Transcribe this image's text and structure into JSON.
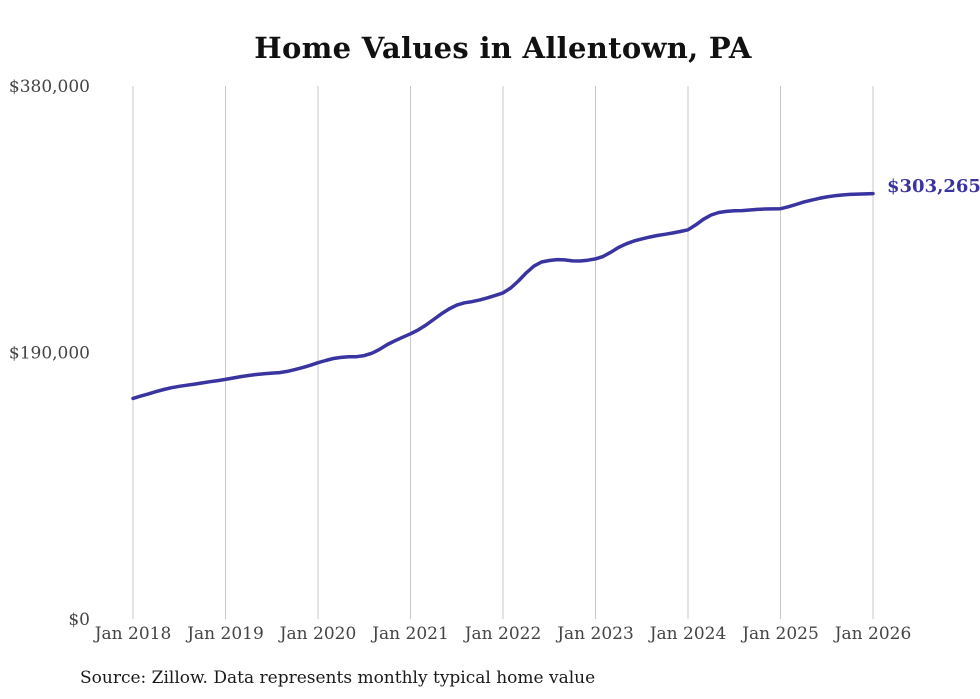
{
  "chart_data": {
    "type": "line",
    "title": "Home Values in Allentown, PA",
    "source_note": "Source: Zillow. Data represents monthly typical home value",
    "end_label": "$303,265",
    "end_value": 303265,
    "x_start": "Jan 2018",
    "x_end": "Jan 2026",
    "x_interval": "monthly",
    "x_tick_labels": [
      "Jan 2018",
      "Jan 2019",
      "Jan 2020",
      "Jan 2021",
      "Jan 2022",
      "Jan 2023",
      "Jan 2024",
      "Jan 2025",
      "Jan 2026"
    ],
    "y_ticks": [
      {
        "label": "$0",
        "value": 0
      },
      {
        "label": "$190,000",
        "value": 190000
      },
      {
        "label": "$380,000",
        "value": 380000
      }
    ],
    "ylim": [
      0,
      380000
    ],
    "grid": "vertical-only",
    "legend": "none",
    "colors": {
      "line": "#3a34a0",
      "gridline": "#c9c9c9",
      "tick_label": "#444444",
      "title": "#111111",
      "source": "#1a1a1a",
      "background": "#ffffff"
    },
    "series": [
      {
        "name": "Monthly typical home value",
        "values": [
          157300,
          158900,
          160500,
          162100,
          163600,
          164900,
          165900,
          166700,
          167500,
          168300,
          169200,
          170000,
          170800,
          171800,
          172800,
          173600,
          174300,
          174900,
          175300,
          175700,
          176500,
          177800,
          179200,
          180900,
          182700,
          184300,
          185700,
          186500,
          186900,
          187000,
          187800,
          189500,
          192300,
          195700,
          198400,
          200900,
          203300,
          206100,
          209500,
          213500,
          217500,
          221000,
          223800,
          225400,
          226300,
          227500,
          229000,
          230700,
          232500,
          236000,
          241000,
          246700,
          251500,
          254500,
          255600,
          256200,
          256000,
          255300,
          255200,
          255800,
          256700,
          258500,
          261500,
          264900,
          267500,
          269500,
          271000,
          272300,
          273400,
          274300,
          275200,
          276300,
          277500,
          281000,
          285000,
          288000,
          289800,
          290600,
          291000,
          291200,
          291600,
          292000,
          292300,
          292400,
          292500,
          293900,
          295500,
          297200,
          298600,
          299900,
          300900,
          301700,
          302300,
          302700,
          302900,
          303100,
          303265
        ]
      }
    ]
  }
}
